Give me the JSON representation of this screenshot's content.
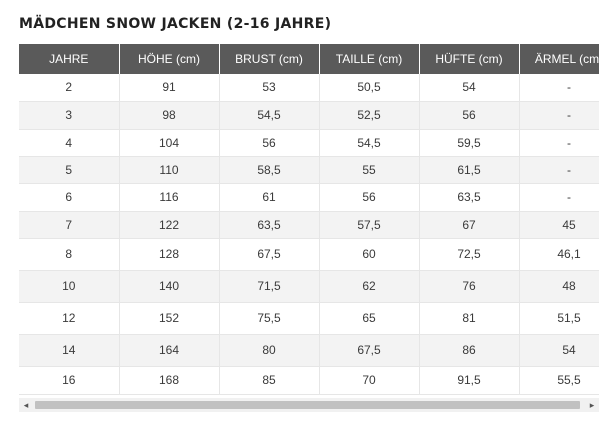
{
  "title": "MÄDCHEN SNOW JACKEN (2-16 JAHRE)",
  "columns": [
    "JAHRE",
    "HÖHE  (cm)",
    "BRUST (cm)",
    "TAILLE (cm)",
    "HÜFTE (cm)",
    "ÄRMEL (cm)"
  ],
  "rows": [
    [
      "2",
      "91",
      "53",
      "50,5",
      "54",
      "-"
    ],
    [
      "3",
      "98",
      "54,5",
      "52,5",
      "56",
      "-"
    ],
    [
      "4",
      "104",
      "56",
      "54,5",
      "59,5",
      "-"
    ],
    [
      "5",
      "110",
      "58,5",
      "55",
      "61,5",
      "-"
    ],
    [
      "6",
      "116",
      "61",
      "56",
      "63,5",
      "-"
    ],
    [
      "7",
      "122",
      "63,5",
      "57,5",
      "67",
      "45"
    ],
    [
      "8",
      "128",
      "67,5",
      "60",
      "72,5",
      "46,1"
    ],
    [
      "10",
      "140",
      "71,5",
      "62",
      "76",
      "48"
    ],
    [
      "12",
      "152",
      "75,5",
      "65",
      "81",
      "51,5"
    ],
    [
      "14",
      "164",
      "80",
      "67,5",
      "86",
      "54"
    ],
    [
      "16",
      "168",
      "85",
      "70",
      "91,5",
      "55,5"
    ]
  ],
  "scrollbar": {
    "left_arrow": "◂",
    "right_arrow": "▸"
  }
}
